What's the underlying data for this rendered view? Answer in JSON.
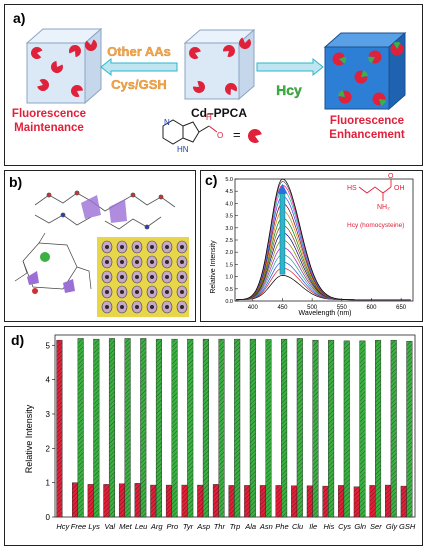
{
  "panel_a": {
    "label": "a)",
    "arrow_left_text": [
      "Other AAs",
      "Cys/GSH"
    ],
    "arrow_right_text": "Hcy",
    "center_label": "Cd–PPCA",
    "left_caption": [
      "Fluorescence",
      "Maintenance"
    ],
    "right_caption": [
      "Fluorescence",
      "Enhancement"
    ],
    "ligand_atoms": {
      "n": "N",
      "nh": "HN",
      "h": "H",
      "o": "O"
    },
    "equals": "=",
    "colors": {
      "red": "#e0213a",
      "green": "#3cb043",
      "orange": "#f5a64a",
      "teal": "#2bb6c9",
      "cube_right": "#2d7fd6"
    }
  },
  "panel_b": {
    "label": "b)"
  },
  "panel_c": {
    "label": "c)",
    "xlabel": "Wavelength (nm)",
    "ylabel": "Relative Intensity",
    "inset_caption": "Hcy (homocysteine)",
    "inset_atoms": {
      "hs": "HS",
      "oh": "OH",
      "o": "O",
      "nh2": "NH₂"
    }
  },
  "panel_d": {
    "label": "d)"
  },
  "chart_data": [
    {
      "type": "line",
      "xlabel": "Wavelength (nm)",
      "ylabel": "Relative Intensity",
      "xlim": [
        370,
        670
      ],
      "ylim": [
        0,
        5.0
      ],
      "xticks": [
        400,
        450,
        500,
        550,
        600,
        650
      ],
      "yticks": [
        0.0,
        0.5,
        1.0,
        1.5,
        2.0,
        2.5,
        3.0,
        3.5,
        4.0,
        4.5,
        5.0
      ],
      "peak_x": 450,
      "baseline": 0.05,
      "series_peaks": [
        1.05,
        1.35,
        1.6,
        1.9,
        2.2,
        2.5,
        2.8,
        3.1,
        3.4,
        3.7,
        4.0,
        4.3,
        4.55,
        4.75,
        4.9,
        5.0
      ],
      "series_colors": [
        "#000000",
        "#e02020",
        "#2050e0",
        "#20a0a0",
        "#a020a0",
        "#808000",
        "#000080",
        "#8b4513",
        "#008000",
        "#e08000",
        "#800000",
        "#4040ff",
        "#20b2aa",
        "#ff1493",
        "#555555",
        "#000000"
      ]
    },
    {
      "type": "bar",
      "ylabel": "Relative Intensity",
      "ylim": [
        0,
        5.3
      ],
      "yticks": [
        0,
        1,
        2,
        3,
        4,
        5
      ],
      "categories": [
        "Hcy",
        "Free",
        "Lys",
        "Val",
        "Met",
        "Leu",
        "Arg",
        "Pro",
        "Tyr",
        "Asp",
        "Thr",
        "Trp",
        "Ala",
        "Asn",
        "Phe",
        "Clu",
        "Ile",
        "His",
        "Cys",
        "Gln",
        "Ser",
        "Gly",
        "GSH"
      ],
      "series": [
        {
          "color": "#e0213a",
          "values": [
            5.15,
            1.0,
            0.95,
            0.95,
            0.97,
            0.98,
            0.93,
            0.93,
            0.93,
            0.93,
            0.95,
            0.92,
            0.92,
            0.92,
            0.92,
            0.91,
            0.91,
            0.9,
            0.92,
            0.88,
            0.92,
            0.93,
            0.9
          ]
        },
        {
          "color": "#3cb043",
          "values": [
            null,
            5.2,
            5.18,
            5.2,
            5.2,
            5.2,
            5.18,
            5.18,
            5.18,
            5.18,
            5.18,
            5.18,
            5.18,
            5.17,
            5.18,
            5.2,
            5.15,
            5.15,
            5.13,
            5.13,
            5.15,
            5.15,
            5.12
          ]
        }
      ]
    }
  ]
}
